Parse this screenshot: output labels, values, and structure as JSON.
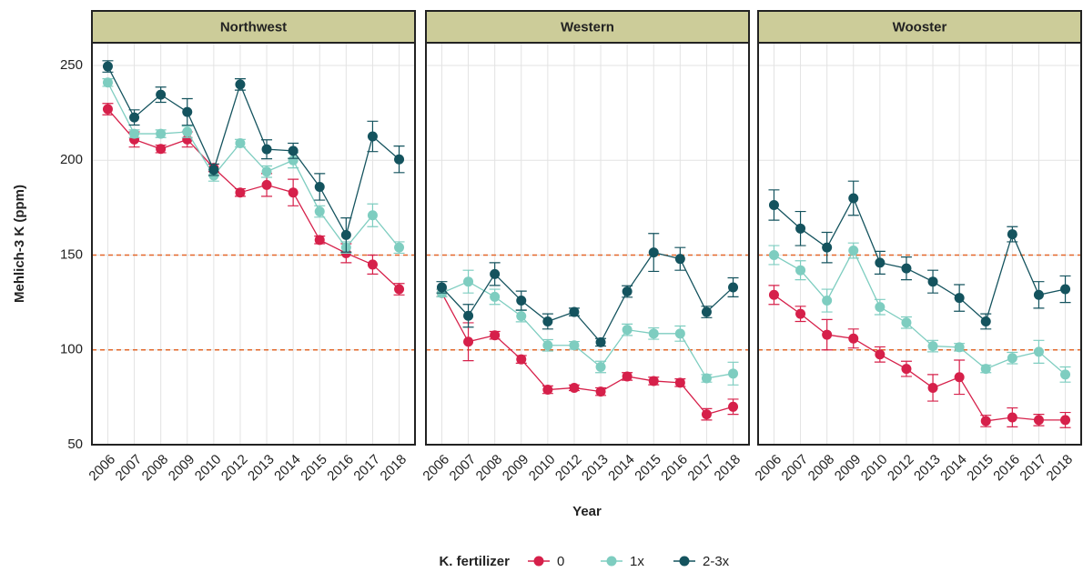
{
  "figure": {
    "ylabel": "Mehlich-3 K (ppm)",
    "xlabel": "Year",
    "legend_title": "K. fertilizer"
  },
  "chart_data": [
    {
      "type": "line",
      "title": "Northwest",
      "categories": [
        "2006",
        "2007",
        "2008",
        "2009",
        "2010",
        "2012",
        "2013",
        "2014",
        "2015",
        "2016",
        "2017",
        "2018"
      ],
      "ylim": [
        50,
        262
      ],
      "yticks": [
        50,
        100,
        150,
        200,
        250
      ],
      "grid": true,
      "hlines": [
        100,
        150
      ],
      "hline_color": "#e3672a",
      "series": [
        {
          "name": "0",
          "color": "#d6204a",
          "values": [
            227,
            211,
            206,
            211,
            196,
            183,
            187,
            183,
            158,
            151,
            145,
            132
          ],
          "errors": [
            3,
            4,
            2,
            4,
            2,
            2,
            6,
            7,
            2,
            5,
            5,
            3
          ]
        },
        {
          "name": "1x",
          "color": "#7ecdc0",
          "values": [
            241,
            214,
            214,
            215,
            192,
            209,
            194,
            200,
            173,
            154,
            171,
            154
          ],
          "errors": [
            2,
            2,
            2,
            3,
            3,
            2,
            3,
            4,
            3,
            3,
            6,
            3
          ]
        },
        {
          "name": "2-3x",
          "color": "#14535e",
          "values": [
            249.5,
            222.6,
            234.6,
            225.5,
            195,
            240,
            205.8,
            205,
            186,
            160.6,
            212.6,
            200.5
          ],
          "errors": [
            3,
            4,
            4,
            7,
            3,
            3,
            5,
            4,
            7,
            9,
            8,
            7
          ]
        }
      ]
    },
    {
      "type": "line",
      "title": "Western",
      "categories": [
        "2006",
        "2007",
        "2008",
        "2009",
        "2010",
        "2012",
        "2013",
        "2014",
        "2015",
        "2016",
        "2017",
        "2018"
      ],
      "ylim": [
        50,
        262
      ],
      "yticks": [
        50,
        100,
        150,
        200,
        250
      ],
      "grid": true,
      "hlines": [
        100,
        150
      ],
      "hline_color": "#e3672a",
      "series": [
        {
          "name": "0",
          "color": "#d6204a",
          "values": [
            130,
            104.3,
            107.7,
            95,
            79,
            80,
            78,
            86,
            83.6,
            82.7,
            66,
            70
          ],
          "errors": [
            2,
            10,
            2,
            2,
            2,
            1.5,
            2,
            2,
            2,
            2,
            3,
            4
          ]
        },
        {
          "name": "1x",
          "color": "#7ecdc0",
          "values": [
            130,
            136,
            128,
            117.8,
            102.4,
            102.4,
            91,
            110.6,
            108.6,
            108.6,
            85,
            87.5
          ],
          "errors": [
            2,
            6,
            4,
            3,
            3,
            2,
            3,
            3,
            3,
            4,
            2,
            6
          ]
        },
        {
          "name": "2-3x",
          "color": "#14535e",
          "values": [
            133,
            118,
            140,
            126,
            115,
            120,
            104,
            130.8,
            151.4,
            148,
            120,
            133
          ],
          "errors": [
            3,
            6,
            6,
            5,
            4,
            2,
            2,
            3,
            10,
            6,
            3,
            5
          ]
        }
      ]
    },
    {
      "type": "line",
      "title": "Wooster",
      "categories": [
        "2006",
        "2007",
        "2008",
        "2009",
        "2010",
        "2012",
        "2013",
        "2014",
        "2015",
        "2016",
        "2017",
        "2018"
      ],
      "ylim": [
        50,
        262
      ],
      "yticks": [
        50,
        100,
        150,
        200,
        250
      ],
      "grid": true,
      "hlines": [
        100,
        150
      ],
      "hline_color": "#e3672a",
      "series": [
        {
          "name": "0",
          "color": "#d6204a",
          "values": [
            129,
            119,
            108,
            106,
            97.6,
            90,
            80,
            85.6,
            62.5,
            64.4,
            63,
            63
          ],
          "errors": [
            5,
            4,
            8,
            5,
            4,
            4,
            7,
            9,
            3,
            5,
            3,
            4
          ]
        },
        {
          "name": "1x",
          "color": "#7ecdc0",
          "values": [
            150,
            142,
            126,
            152.4,
            122.6,
            114.4,
            102,
            101.4,
            90,
            95.7,
            99,
            87
          ],
          "errors": [
            5,
            5,
            6,
            4,
            4,
            3,
            3,
            2,
            2,
            3,
            6,
            4
          ]
        },
        {
          "name": "2-3x",
          "color": "#14535e",
          "values": [
            176.4,
            164,
            154,
            180,
            146,
            143,
            136,
            127.4,
            115,
            161,
            129,
            132
          ],
          "errors": [
            8,
            9,
            8,
            9,
            6,
            6,
            6,
            7,
            4,
            4,
            7,
            7
          ]
        }
      ]
    }
  ]
}
